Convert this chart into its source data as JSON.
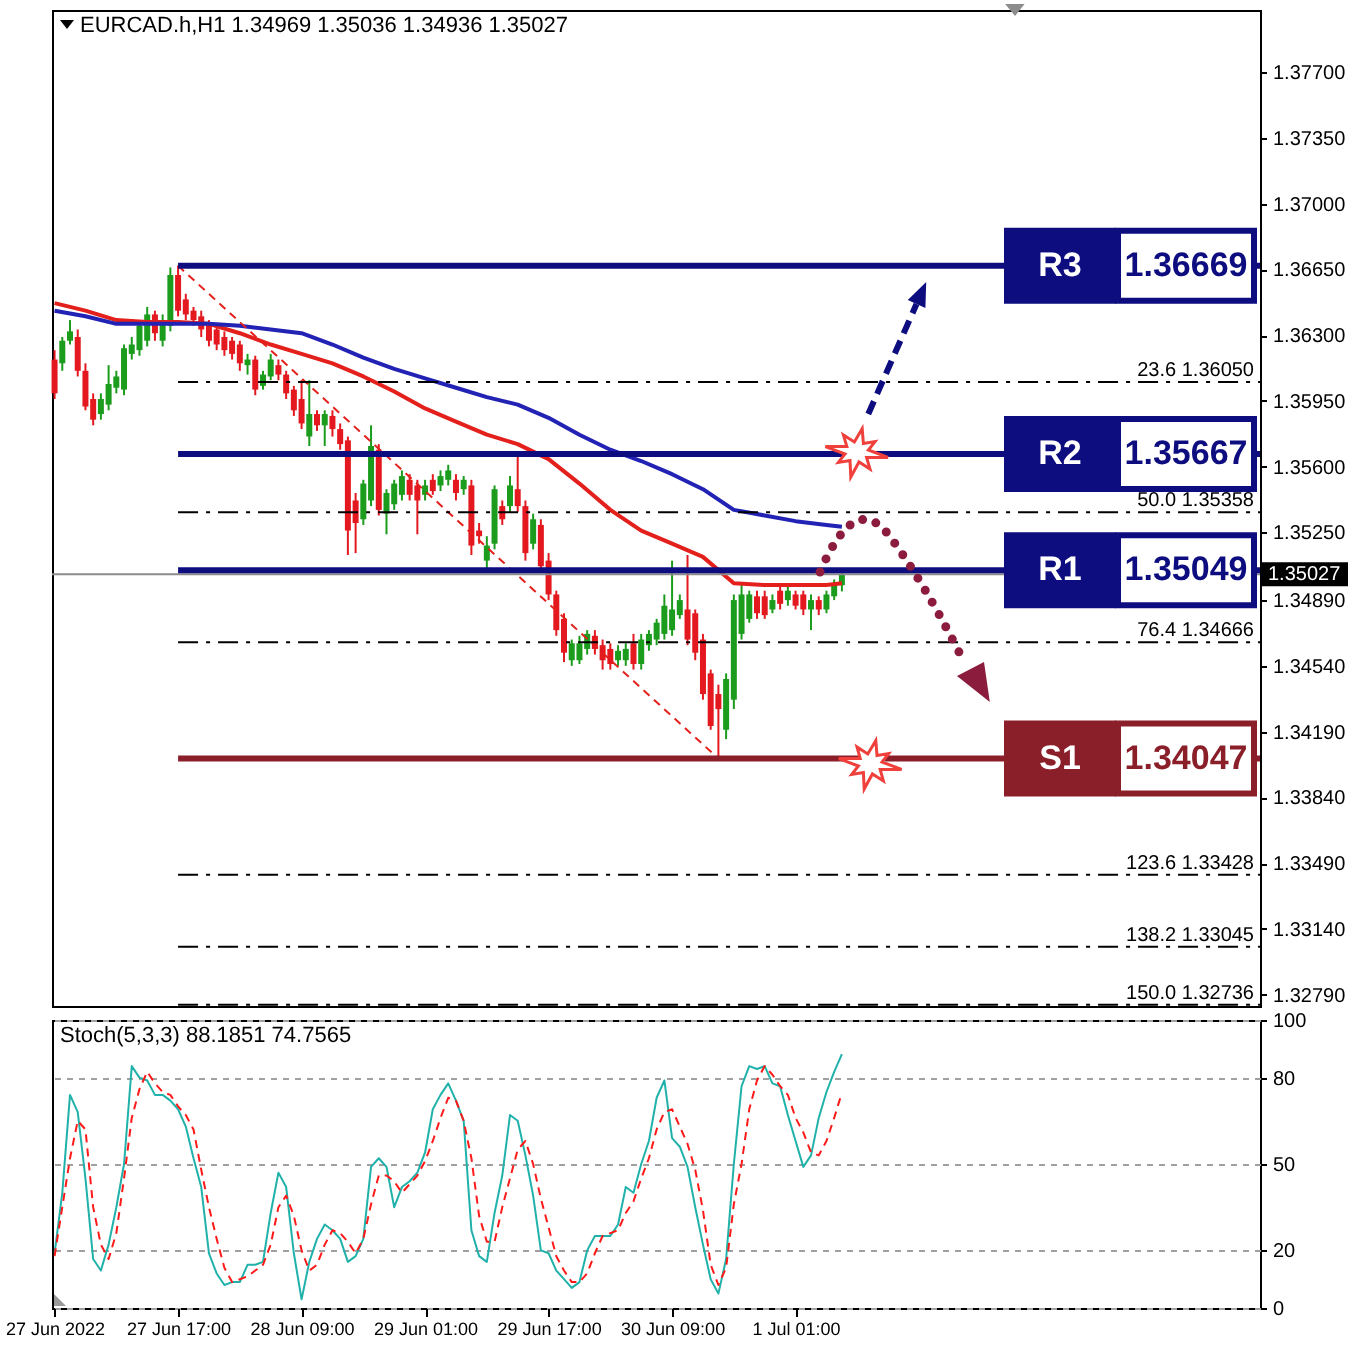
{
  "chart_data": [
    {
      "type": "candlestick",
      "title": "EURCAD.h,H1 1.34969 1.35036 1.34936 1.35027",
      "x": [
        "2022-06-27T01:00",
        "2022-06-27T02:00",
        "2022-06-27T03:00",
        "2022-06-27T04:00",
        "2022-06-27T05:00",
        "2022-06-27T06:00",
        "2022-06-27T07:00",
        "2022-06-27T08:00",
        "2022-06-27T09:00",
        "2022-06-27T10:00",
        "2022-06-27T11:00",
        "2022-06-27T12:00",
        "2022-06-27T13:00",
        "2022-06-27T14:00",
        "2022-06-27T15:00",
        "2022-06-27T16:00",
        "2022-06-27T17:00",
        "2022-06-27T18:00",
        "2022-06-27T19:00",
        "2022-06-27T20:00",
        "2022-06-27T21:00",
        "2022-06-27T22:00",
        "2022-06-27T23:00",
        "2022-06-28T00:00",
        "2022-06-28T01:00",
        "2022-06-28T02:00",
        "2022-06-28T03:00",
        "2022-06-28T04:00",
        "2022-06-28T05:00",
        "2022-06-28T06:00",
        "2022-06-28T07:00",
        "2022-06-28T08:00",
        "2022-06-28T09:00",
        "2022-06-28T10:00",
        "2022-06-28T11:00",
        "2022-06-28T12:00",
        "2022-06-28T13:00",
        "2022-06-28T14:00",
        "2022-06-28T15:00",
        "2022-06-28T16:00",
        "2022-06-28T17:00",
        "2022-06-28T18:00",
        "2022-06-28T19:00",
        "2022-06-28T20:00",
        "2022-06-28T21:00",
        "2022-06-28T22:00",
        "2022-06-28T23:00",
        "2022-06-29T00:00",
        "2022-06-29T01:00",
        "2022-06-29T02:00",
        "2022-06-29T03:00",
        "2022-06-29T04:00",
        "2022-06-29T05:00",
        "2022-06-29T06:00",
        "2022-06-29T07:00",
        "2022-06-29T08:00",
        "2022-06-29T09:00",
        "2022-06-29T10:00",
        "2022-06-29T11:00",
        "2022-06-29T12:00",
        "2022-06-29T13:00",
        "2022-06-29T14:00",
        "2022-06-29T15:00",
        "2022-06-29T16:00",
        "2022-06-29T17:00",
        "2022-06-29T18:00",
        "2022-06-29T19:00",
        "2022-06-29T20:00",
        "2022-06-29T21:00",
        "2022-06-29T22:00",
        "2022-06-29T23:00",
        "2022-06-30T00:00",
        "2022-06-30T01:00",
        "2022-06-30T02:00",
        "2022-06-30T03:00",
        "2022-06-30T04:00",
        "2022-06-30T05:00",
        "2022-06-30T06:00",
        "2022-06-30T07:00",
        "2022-06-30T08:00",
        "2022-06-30T09:00",
        "2022-06-30T10:00",
        "2022-06-30T11:00",
        "2022-06-30T12:00",
        "2022-06-30T13:00",
        "2022-06-30T14:00",
        "2022-06-30T15:00",
        "2022-06-30T16:00",
        "2022-06-30T17:00",
        "2022-06-30T18:00",
        "2022-06-30T19:00",
        "2022-06-30T20:00",
        "2022-06-30T21:00",
        "2022-06-30T22:00",
        "2022-06-30T23:00",
        "2022-07-01T00:00",
        "2022-07-01T01:00",
        "2022-07-01T02:00",
        "2022-07-01T03:00",
        "2022-07-01T04:00",
        "2022-07-01T05:00",
        "2022-07-01T06:00",
        "2022-07-01T07:00"
      ],
      "ohlc": [
        [
          1.3617,
          1.3622,
          1.3596,
          1.3599
        ],
        [
          1.3615,
          1.3629,
          1.3611,
          1.3627
        ],
        [
          1.3627,
          1.3638,
          1.3625,
          1.3632
        ],
        [
          1.3629,
          1.3633,
          1.3608,
          1.3611
        ],
        [
          1.3611,
          1.3615,
          1.359,
          1.3592
        ],
        [
          1.3596,
          1.3599,
          1.3582,
          1.3585
        ],
        [
          1.3588,
          1.3599,
          1.3585,
          1.3596
        ],
        [
          1.3593,
          1.3614,
          1.359,
          1.3604
        ],
        [
          1.3602,
          1.3611,
          1.3599,
          1.3608
        ],
        [
          1.3601,
          1.3625,
          1.3598,
          1.3623
        ],
        [
          1.362,
          1.3629,
          1.3617,
          1.3625
        ],
        [
          1.3622,
          1.3638,
          1.3619,
          1.3635
        ],
        [
          1.3627,
          1.3645,
          1.3624,
          1.3641
        ],
        [
          1.3641,
          1.3643,
          1.3627,
          1.3631
        ],
        [
          1.3627,
          1.3641,
          1.3624,
          1.3638
        ],
        [
          1.3635,
          1.3666,
          1.3632,
          1.3662
        ],
        [
          1.3662,
          1.3667,
          1.364,
          1.3643
        ],
        [
          1.3649,
          1.3652,
          1.3638,
          1.3641
        ],
        [
          1.3643,
          1.3645,
          1.3635,
          1.3638
        ],
        [
          1.364,
          1.3643,
          1.3629,
          1.3633
        ],
        [
          1.3635,
          1.3638,
          1.3624,
          1.3627
        ],
        [
          1.3633,
          1.3635,
          1.3622,
          1.3625
        ],
        [
          1.3629,
          1.3632,
          1.3619,
          1.3622
        ],
        [
          1.3627,
          1.3629,
          1.3617,
          1.362
        ],
        [
          1.3625,
          1.3627,
          1.3611,
          1.3615
        ],
        [
          1.3614,
          1.362,
          1.3609,
          1.3617
        ],
        [
          1.3617,
          1.3619,
          1.3598,
          1.3601
        ],
        [
          1.3603,
          1.3611,
          1.3601,
          1.3609
        ],
        [
          1.3608,
          1.362,
          1.3606,
          1.3617
        ],
        [
          1.3614,
          1.3617,
          1.3606,
          1.3609
        ],
        [
          1.3609,
          1.3611,
          1.3596,
          1.3599
        ],
        [
          1.3601,
          1.3603,
          1.3587,
          1.359
        ],
        [
          1.3596,
          1.3606,
          1.358,
          1.3583
        ],
        [
          1.3576,
          1.3606,
          1.3571,
          1.3588
        ],
        [
          1.3588,
          1.359,
          1.3579,
          1.3582
        ],
        [
          1.3582,
          1.359,
          1.3571,
          1.3588
        ],
        [
          1.3587,
          1.359,
          1.3576,
          1.358
        ],
        [
          1.358,
          1.3583,
          1.3569,
          1.3572
        ],
        [
          1.3574,
          1.3576,
          1.3513,
          1.3526
        ],
        [
          1.3542,
          1.3546,
          1.3514,
          1.353
        ],
        [
          1.3532,
          1.3553,
          1.3529,
          1.3551
        ],
        [
          1.3542,
          1.3582,
          1.3539,
          1.3571
        ],
        [
          1.3569,
          1.3572,
          1.3534,
          1.3537
        ],
        [
          1.3535,
          1.3548,
          1.3524,
          1.3546
        ],
        [
          1.354,
          1.3553,
          1.3537,
          1.3551
        ],
        [
          1.3545,
          1.3558,
          1.3542,
          1.3555
        ],
        [
          1.3553,
          1.3556,
          1.3542,
          1.3545
        ],
        [
          1.355,
          1.3553,
          1.3524,
          1.3542
        ],
        [
          1.3545,
          1.3553,
          1.3542,
          1.355
        ],
        [
          1.3553,
          1.3556,
          1.3545,
          1.3547
        ],
        [
          1.355,
          1.3558,
          1.3547,
          1.3555
        ],
        [
          1.3553,
          1.3561,
          1.355,
          1.3558
        ],
        [
          1.3553,
          1.3556,
          1.3542,
          1.3546
        ],
        [
          1.3548,
          1.3555,
          1.3545,
          1.3553
        ],
        [
          1.355,
          1.3553,
          1.3513,
          1.3518
        ],
        [
          1.3526,
          1.353,
          1.3519,
          1.3523
        ],
        [
          1.351,
          1.3523,
          1.3505,
          1.3518
        ],
        [
          1.3519,
          1.355,
          1.3516,
          1.3548
        ],
        [
          1.3539,
          1.3542,
          1.3529,
          1.3532
        ],
        [
          1.3539,
          1.3555,
          1.3536,
          1.355
        ],
        [
          1.3548,
          1.3567,
          1.3536,
          1.3539
        ],
        [
          1.3539,
          1.3542,
          1.351,
          1.3514
        ],
        [
          1.3519,
          1.3535,
          1.3516,
          1.3532
        ],
        [
          1.3529,
          1.3532,
          1.3504,
          1.3507
        ],
        [
          1.351,
          1.3514,
          1.3489,
          1.3492
        ],
        [
          1.3492,
          1.3494,
          1.347,
          1.3473
        ],
        [
          1.3479,
          1.3482,
          1.3456,
          1.3461
        ],
        [
          1.3457,
          1.3468,
          1.3454,
          1.3466
        ],
        [
          1.3457,
          1.347,
          1.3455,
          1.3466
        ],
        [
          1.3463,
          1.3473,
          1.346,
          1.3471
        ],
        [
          1.347,
          1.3473,
          1.346,
          1.3463
        ],
        [
          1.3465,
          1.3468,
          1.3452,
          1.3457
        ],
        [
          1.3463,
          1.3466,
          1.3452,
          1.3455
        ],
        [
          1.3457,
          1.3465,
          1.3454,
          1.3462
        ],
        [
          1.3457,
          1.3466,
          1.3454,
          1.3463
        ],
        [
          1.3466,
          1.3471,
          1.3452,
          1.3455
        ],
        [
          1.3455,
          1.3471,
          1.3452,
          1.3468
        ],
        [
          1.3465,
          1.3473,
          1.3462,
          1.3471
        ],
        [
          1.3468,
          1.3479,
          1.3465,
          1.3477
        ],
        [
          1.3471,
          1.3492,
          1.3468,
          1.3486
        ],
        [
          1.3473,
          1.351,
          1.347,
          1.3484
        ],
        [
          1.3481,
          1.3492,
          1.3479,
          1.3489
        ],
        [
          1.3484,
          1.3513,
          1.3465,
          1.3468
        ],
        [
          1.3482,
          1.3484,
          1.3457,
          1.3461
        ],
        [
          1.3468,
          1.3471,
          1.3436,
          1.3439
        ],
        [
          1.345,
          1.3452,
          1.342,
          1.3422
        ],
        [
          1.3439,
          1.3444,
          1.3405,
          1.3431
        ],
        [
          1.342,
          1.345,
          1.3415,
          1.3447
        ],
        [
          1.3436,
          1.3492,
          1.3431,
          1.3489
        ],
        [
          1.3471,
          1.3497,
          1.3468,
          1.3492
        ],
        [
          1.3479,
          1.3494,
          1.3477,
          1.3492
        ],
        [
          1.3491,
          1.3494,
          1.3479,
          1.3482
        ],
        [
          1.3491,
          1.3494,
          1.3479,
          1.3481
        ],
        [
          1.3484,
          1.3492,
          1.3482,
          1.3489
        ],
        [
          1.3494,
          1.3497,
          1.3484,
          1.3487
        ],
        [
          1.3489,
          1.3497,
          1.3486,
          1.3494
        ],
        [
          1.3492,
          1.3494,
          1.3484,
          1.3486
        ],
        [
          1.3492,
          1.3494,
          1.3481,
          1.3484
        ],
        [
          1.3484,
          1.3492,
          1.3473,
          1.3489
        ],
        [
          1.3489,
          1.3491,
          1.3481,
          1.3484
        ],
        [
          1.3484,
          1.3494,
          1.3482,
          1.3492
        ],
        [
          1.3491,
          1.35,
          1.3489,
          1.3497
        ],
        [
          1.34969,
          1.35036,
          1.34936,
          1.35027
        ]
      ],
      "colors": [
        "#e3191f",
        "#1c9c1c",
        "#1c9c1c",
        "#e3191f",
        "#e3191f",
        "#e3191f",
        "#1c9c1c",
        "#1c9c1c",
        "#1c9c1c",
        "#1c9c1c",
        "#1c9c1c",
        "#1c9c1c",
        "#1c9c1c",
        "#e3191f",
        "#1c9c1c",
        "#1c9c1c",
        "#e3191f",
        "#e3191f",
        "#e3191f",
        "#e3191f",
        "#e3191f",
        "#e3191f",
        "#e3191f",
        "#e3191f",
        "#e3191f",
        "#1c9c1c",
        "#e3191f",
        "#1c9c1c",
        "#1c9c1c",
        "#e3191f",
        "#e3191f",
        "#e3191f",
        "#e3191f",
        "#1c9c1c",
        "#e3191f",
        "#1c9c1c",
        "#e3191f",
        "#e3191f",
        "#e3191f",
        "#e3191f",
        "#1c9c1c",
        "#1c9c1c",
        "#e3191f",
        "#1c9c1c",
        "#1c9c1c",
        "#1c9c1c",
        "#e3191f",
        "#e3191f",
        "#1c9c1c",
        "#e3191f",
        "#1c9c1c",
        "#1c9c1c",
        "#e3191f",
        "#1c9c1c",
        "#e3191f",
        "#e3191f",
        "#1c9c1c",
        "#1c9c1c",
        "#e3191f",
        "#1c9c1c",
        "#e3191f",
        "#e3191f",
        "#1c9c1c",
        "#e3191f",
        "#e3191f",
        "#e3191f",
        "#e3191f",
        "#1c9c1c",
        "#1c9c1c",
        "#1c9c1c",
        "#e3191f",
        "#e3191f",
        "#e3191f",
        "#1c9c1c",
        "#1c9c1c",
        "#e3191f",
        "#1c9c1c",
        "#1c9c1c",
        "#1c9c1c",
        "#1c9c1c",
        "#1c9c1c",
        "#1c9c1c",
        "#e3191f",
        "#e3191f",
        "#e3191f",
        "#e3191f",
        "#e3191f",
        "#1c9c1c",
        "#1c9c1c",
        "#1c9c1c",
        "#1c9c1c",
        "#e3191f",
        "#e3191f",
        "#1c9c1c",
        "#e3191f",
        "#1c9c1c",
        "#e3191f",
        "#e3191f",
        "#1c9c1c",
        "#e3191f",
        "#1c9c1c",
        "#1c9c1c",
        "#1c9c1c"
      ],
      "series": [
        {
          "type": "line",
          "color": "#e3201c",
          "x": [
            "2022-06-27T01:00",
            "2022-06-27T05:00",
            "2022-06-27T09:00",
            "2022-06-27T13:00",
            "2022-06-27T17:00",
            "2022-06-27T21:00",
            "2022-06-28T01:00",
            "2022-06-28T05:00",
            "2022-06-28T09:00",
            "2022-06-28T13:00",
            "2022-06-28T17:00",
            "2022-06-28T21:00",
            "2022-06-29T01:00",
            "2022-06-29T05:00",
            "2022-06-29T09:00",
            "2022-06-29T13:00",
            "2022-06-29T17:00",
            "2022-06-29T21:00",
            "2022-06-30T01:00",
            "2022-06-30T05:00",
            "2022-06-30T09:00",
            "2022-06-30T13:00",
            "2022-06-30T17:00",
            "2022-06-30T21:00",
            "2022-07-01T01:00",
            "2022-07-01T05:00",
            "2022-07-01T07:00"
          ],
          "values": [
            1.3647,
            1.3643,
            1.3638,
            1.3637,
            1.3637,
            1.3636,
            1.3631,
            1.3625,
            1.362,
            1.3615,
            1.3608,
            1.36,
            1.3591,
            1.3584,
            1.3577,
            1.3572,
            1.3564,
            1.3551,
            1.3537,
            1.3526,
            1.3519,
            1.3512,
            1.3498,
            1.3497,
            1.3497,
            1.3497,
            1.3498
          ]
        },
        {
          "type": "line",
          "color": "#2222b4",
          "x": [
            "2022-06-27T01:00",
            "2022-06-27T05:00",
            "2022-06-27T09:00",
            "2022-06-27T13:00",
            "2022-06-27T17:00",
            "2022-06-27T21:00",
            "2022-06-28T01:00",
            "2022-06-28T05:00",
            "2022-06-28T09:00",
            "2022-06-28T13:00",
            "2022-06-28T17:00",
            "2022-06-28T21:00",
            "2022-06-29T01:00",
            "2022-06-29T05:00",
            "2022-06-29T09:00",
            "2022-06-29T13:00",
            "2022-06-29T17:00",
            "2022-06-29T21:00",
            "2022-06-30T01:00",
            "2022-06-30T05:00",
            "2022-06-30T09:00",
            "2022-06-30T13:00",
            "2022-06-30T17:00",
            "2022-06-30T21:00",
            "2022-07-01T01:00",
            "2022-07-01T05:00",
            "2022-07-01T07:00"
          ],
          "values": [
            1.3643,
            1.364,
            1.3636,
            1.3636,
            1.3636,
            1.3636,
            1.3635,
            1.3633,
            1.3631,
            1.3625,
            1.3618,
            1.3612,
            1.3607,
            1.3602,
            1.3597,
            1.3593,
            1.3586,
            1.3577,
            1.3569,
            1.3563,
            1.3556,
            1.3548,
            1.3537,
            1.3534,
            1.3531,
            1.3529,
            1.3528
          ]
        },
        {
          "type": "line",
          "color": "#e3201c",
          "line_style": "dashed",
          "x": [
            "2022-06-27T17:00",
            "2022-06-30T15:00"
          ],
          "values": [
            1.36669,
            1.34047
          ]
        }
      ],
      "ref_lines": [
        {
          "axis": "y",
          "value": 1.35027,
          "color": "#8c8c8c"
        },
        {
          "axis": "y",
          "value": 1.36669,
          "label": "R3",
          "color": "#0d0d80"
        },
        {
          "axis": "y",
          "value": 1.35667,
          "label": "R2",
          "color": "#0d0d80"
        },
        {
          "axis": "y",
          "value": 1.35049,
          "label": "R1",
          "color": "#0d0d80"
        },
        {
          "axis": "y",
          "value": 1.34047,
          "label": "S1",
          "color": "#8a1f2a"
        },
        {
          "axis": "y",
          "value": 1.3605,
          "label": "23.6 1.36050",
          "color": "#000000",
          "line_style": "dashdot"
        },
        {
          "axis": "y",
          "value": 1.35358,
          "label": "50.0 1.35358",
          "color": "#000000",
          "line_style": "dashdot"
        },
        {
          "axis": "y",
          "value": 1.34666,
          "label": "76.4 1.34666",
          "color": "#000000",
          "line_style": "dashdot"
        },
        {
          "axis": "y",
          "value": 1.33428,
          "label": "123.6 1.33428",
          "color": "#000000",
          "line_style": "dashdot"
        },
        {
          "axis": "y",
          "value": 1.33045,
          "label": "138.2 1.33045",
          "color": "#000000",
          "line_style": "dashdot"
        },
        {
          "axis": "y",
          "value": 1.32736,
          "label": "150.0 1.32736",
          "color": "#000000",
          "line_style": "dashdot"
        }
      ],
      "annotations": [
        {
          "text": "1.36669",
          "y": 1.36669
        },
        {
          "text": "1.35667",
          "y": 1.35667
        },
        {
          "text": "1.35049",
          "y": 1.35049
        },
        {
          "text": "1.34047",
          "y": 1.34047
        },
        "1.35027"
      ],
      "xlim": [
        "2022-06-27T00:40",
        "2022-07-03T13:10"
      ],
      "ylim": [
        1.3273,
        1.3803
      ],
      "yticks": [
        {
          "value": 1.377,
          "label": "1.37700"
        },
        {
          "value": 1.3735,
          "label": "1.37350"
        },
        {
          "value": 1.37,
          "label": "1.37000"
        },
        {
          "value": 1.3665,
          "label": "1.36650"
        },
        {
          "value": 1.363,
          "label": "1.36300"
        },
        {
          "value": 1.3595,
          "label": "1.35950"
        },
        {
          "value": 1.356,
          "label": "1.35600"
        },
        {
          "value": 1.3525,
          "label": "1.35250"
        },
        {
          "value": 1.3489,
          "label": "1.34890"
        },
        {
          "value": 1.3454,
          "label": "1.34540"
        },
        {
          "value": 1.3419,
          "label": "1.34190"
        },
        {
          "value": 1.3384,
          "label": "1.33840"
        },
        {
          "value": 1.3349,
          "label": "1.33490"
        },
        {
          "value": 1.3314,
          "label": "1.33140"
        },
        {
          "value": 1.3279,
          "label": "1.32790"
        }
      ],
      "tick_labels": "y"
    },
    {
      "type": "line",
      "title": "Stoch(5,3,3) 88.1851 74.7565",
      "x": [
        "2022-06-27T01:00",
        "2022-06-27T02:00",
        "2022-06-27T03:00",
        "2022-06-27T04:00",
        "2022-06-27T05:00",
        "2022-06-27T06:00",
        "2022-06-27T07:00",
        "2022-06-27T08:00",
        "2022-06-27T09:00",
        "2022-06-27T10:00",
        "2022-06-27T11:00",
        "2022-06-27T12:00",
        "2022-06-27T13:00",
        "2022-06-27T14:00",
        "2022-06-27T15:00",
        "2022-06-27T16:00",
        "2022-06-27T17:00",
        "2022-06-27T18:00",
        "2022-06-27T19:00",
        "2022-06-27T20:00",
        "2022-06-27T21:00",
        "2022-06-27T22:00",
        "2022-06-27T23:00",
        "2022-06-28T00:00",
        "2022-06-28T01:00",
        "2022-06-28T02:00",
        "2022-06-28T03:00",
        "2022-06-28T04:00",
        "2022-06-28T05:00",
        "2022-06-28T06:00",
        "2022-06-28T07:00",
        "2022-06-28T08:00",
        "2022-06-28T09:00",
        "2022-06-28T10:00",
        "2022-06-28T11:00",
        "2022-06-28T12:00",
        "2022-06-28T13:00",
        "2022-06-28T14:00",
        "2022-06-28T15:00",
        "2022-06-28T16:00",
        "2022-06-28T17:00",
        "2022-06-28T18:00",
        "2022-06-28T19:00",
        "2022-06-28T20:00",
        "2022-06-28T21:00",
        "2022-06-28T22:00",
        "2022-06-28T23:00",
        "2022-06-29T00:00",
        "2022-06-29T01:00",
        "2022-06-29T02:00",
        "2022-06-29T03:00",
        "2022-06-29T04:00",
        "2022-06-29T05:00",
        "2022-06-29T06:00",
        "2022-06-29T07:00",
        "2022-06-29T08:00",
        "2022-06-29T09:00",
        "2022-06-29T10:00",
        "2022-06-29T11:00",
        "2022-06-29T12:00",
        "2022-06-29T13:00",
        "2022-06-29T14:00",
        "2022-06-29T15:00",
        "2022-06-29T16:00",
        "2022-06-29T17:00",
        "2022-06-29T18:00",
        "2022-06-29T19:00",
        "2022-06-29T20:00",
        "2022-06-29T21:00",
        "2022-06-29T22:00",
        "2022-06-29T23:00",
        "2022-06-30T00:00",
        "2022-06-30T01:00",
        "2022-06-30T02:00",
        "2022-06-30T03:00",
        "2022-06-30T04:00",
        "2022-06-30T05:00",
        "2022-06-30T06:00",
        "2022-06-30T07:00",
        "2022-06-30T08:00",
        "2022-06-30T09:00",
        "2022-06-30T10:00",
        "2022-06-30T11:00",
        "2022-06-30T12:00",
        "2022-06-30T13:00",
        "2022-06-30T14:00",
        "2022-06-30T15:00",
        "2022-06-30T16:00",
        "2022-06-30T17:00",
        "2022-06-30T18:00",
        "2022-06-30T19:00",
        "2022-06-30T20:00",
        "2022-06-30T21:00",
        "2022-06-30T22:00",
        "2022-06-30T23:00",
        "2022-07-01T00:00",
        "2022-07-01T01:00",
        "2022-07-01T02:00",
        "2022-07-01T03:00",
        "2022-07-01T04:00",
        "2022-07-01T05:00",
        "2022-07-01T06:00",
        "2022-07-01T07:00"
      ],
      "series": [
        {
          "color": "#20b2aa",
          "values": [
            19,
            40,
            74,
            68,
            45,
            17,
            13,
            22,
            35,
            50,
            84,
            80,
            79,
            74,
            74,
            72,
            69,
            63,
            52,
            42,
            19,
            12,
            8,
            9,
            9,
            15,
            15,
            16,
            33,
            47,
            42,
            19,
            3,
            16,
            24,
            29,
            27,
            24,
            16,
            18,
            24,
            49,
            52,
            49,
            35,
            42,
            44,
            47,
            54,
            69,
            74,
            78,
            72,
            65,
            27,
            18,
            16,
            33,
            46,
            67,
            65,
            53,
            39,
            20,
            19,
            13,
            10,
            7,
            9,
            20,
            25,
            25,
            25,
            29,
            42,
            40,
            50,
            58,
            73,
            79,
            59,
            56,
            49,
            35,
            22,
            10,
            5,
            17,
            50,
            77,
            84,
            83,
            84,
            78,
            77,
            67,
            58,
            49,
            53,
            66,
            75,
            82,
            88.1851
          ]
        },
        {
          "color": "#ff1a1a",
          "line_style": "dashed",
          "values": [
            18,
            35,
            52,
            65,
            62,
            35,
            22,
            17,
            26,
            45,
            66,
            76,
            82,
            78,
            75,
            74,
            70,
            67,
            62,
            48,
            35,
            24,
            14,
            9,
            10,
            11,
            13,
            15,
            22,
            35,
            39,
            32,
            20,
            13,
            15,
            22,
            27,
            26,
            23,
            19,
            24,
            36,
            46,
            46,
            44,
            40,
            43,
            46,
            51,
            58,
            66,
            73,
            72,
            65,
            52,
            32,
            23,
            23,
            35,
            45,
            55,
            58,
            50,
            38,
            28,
            18,
            13,
            9,
            9,
            12,
            19,
            25,
            26,
            27,
            33,
            37,
            45,
            52,
            62,
            68,
            69,
            63,
            57,
            48,
            34,
            15,
            8,
            14,
            36,
            50,
            69,
            79,
            84,
            81,
            77,
            74,
            66,
            61,
            54,
            53,
            58,
            66,
            74.7565
          ]
        }
      ],
      "xlim": [
        "2022-06-27T00:40",
        "2022-07-03T13:10"
      ],
      "xticks": [
        {
          "value": "2022-06-27T01:00",
          "label": "27 Jun 2022"
        },
        {
          "value": "2022-06-27T17:00",
          "label": "27 Jun 17:00"
        },
        {
          "value": "2022-06-28T09:00",
          "label": "28 Jun 09:00"
        },
        {
          "value": "2022-06-29T01:00",
          "label": "29 Jun 01:00"
        },
        {
          "value": "2022-06-29T17:00",
          "label": "29 Jun 17:00"
        },
        {
          "value": "2022-06-30T09:00",
          "label": "30 Jun 09:00"
        },
        {
          "value": "2022-07-01T01:00",
          "label": "1 Jul 01:00"
        }
      ],
      "ylim": [
        0,
        100
      ],
      "yticks": [
        0,
        20,
        50,
        80,
        100
      ],
      "grid": "y"
    }
  ]
}
